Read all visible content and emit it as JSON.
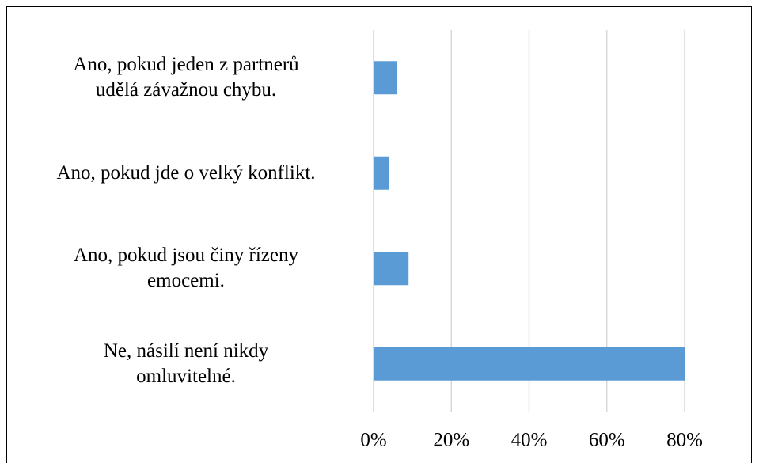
{
  "chart_data": {
    "type": "bar",
    "orientation": "horizontal",
    "categories": [
      "Ano, pokud jeden z partnerů\nudělá závažnou chybu.",
      "Ano, pokud jde o velký konflikt.",
      "Ano, pokud jsou činy řízeny\nemocemi.",
      "Ne, násilí není nikdy\nomluvitelné."
    ],
    "values": [
      6,
      4,
      9,
      80
    ],
    "color": "#5b9bd5",
    "xlim": [
      0,
      80
    ],
    "xticks": [
      {
        "value": 0,
        "label": "0%"
      },
      {
        "value": 20,
        "label": "20%"
      },
      {
        "value": 40,
        "label": "40%"
      },
      {
        "value": 60,
        "label": "60%"
      },
      {
        "value": 80,
        "label": "80%"
      }
    ],
    "grid": true
  }
}
